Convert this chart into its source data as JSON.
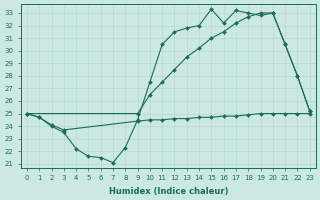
{
  "xlabel": "Humidex (Indice chaleur)",
  "background_color": "#cbe8e4",
  "line_color": "#1a6b5a",
  "grid_color": "#b8d8d4",
  "xlim": [
    -0.5,
    23.5
  ],
  "ylim": [
    20.7,
    33.7
  ],
  "yticks": [
    21,
    22,
    23,
    24,
    25,
    26,
    27,
    28,
    29,
    30,
    31,
    32,
    33
  ],
  "xticks": [
    0,
    1,
    2,
    3,
    4,
    5,
    6,
    7,
    8,
    9,
    10,
    11,
    12,
    13,
    14,
    15,
    16,
    17,
    18,
    19,
    20,
    21,
    22,
    23
  ],
  "series_u": {
    "x": [
      0,
      1,
      2,
      3,
      4,
      5,
      6,
      7,
      8,
      9,
      10,
      11,
      12,
      13,
      14,
      15,
      16,
      17,
      18,
      19,
      20,
      21,
      22,
      23
    ],
    "y": [
      25.0,
      24.7,
      24.0,
      23.5,
      22.2,
      21.6,
      21.5,
      21.1,
      22.3,
      24.5,
      27.5,
      30.5,
      31.5,
      31.8,
      32.0,
      33.3,
      32.2,
      33.2,
      33.0,
      32.8,
      33.0,
      30.5,
      28.0,
      25.2
    ]
  },
  "series_diag1": {
    "x": [
      0,
      9,
      10,
      11,
      12,
      13,
      14,
      15,
      16,
      17,
      18,
      19,
      20,
      21,
      22,
      23
    ],
    "y": [
      25.0,
      25.0,
      26.5,
      27.5,
      28.5,
      29.5,
      30.2,
      31.0,
      31.5,
      32.2,
      32.7,
      33.0,
      33.0,
      30.5,
      28.0,
      25.2
    ]
  },
  "series_diag2": {
    "x": [
      0,
      1,
      2,
      3,
      9,
      10,
      11,
      12,
      13,
      14,
      15,
      16,
      17,
      18,
      19,
      20,
      21,
      22,
      23
    ],
    "y": [
      25.0,
      24.7,
      24.1,
      23.7,
      24.4,
      24.5,
      24.5,
      24.6,
      24.6,
      24.7,
      24.7,
      24.8,
      24.8,
      24.9,
      25.0,
      25.0,
      25.0,
      25.0,
      25.0
    ]
  }
}
